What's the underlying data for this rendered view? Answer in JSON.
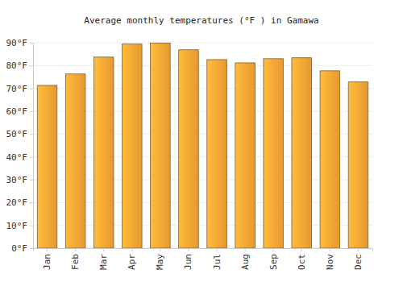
{
  "chart_data": {
    "type": "bar",
    "title": "Average monthly temperatures (°F ) in Gamawa",
    "categories": [
      "Jan",
      "Feb",
      "Mar",
      "Apr",
      "May",
      "Jun",
      "Jul",
      "Aug",
      "Sep",
      "Oct",
      "Nov",
      "Dec"
    ],
    "values": [
      71.3,
      76.3,
      83.7,
      89.4,
      89.8,
      86.9,
      82.6,
      81.2,
      83.0,
      83.4,
      77.7,
      72.8
    ],
    "color": "#fba634",
    "ylim": [
      0,
      90
    ],
    "yticks": [
      {
        "value": 0,
        "label": "0°F"
      },
      {
        "value": 10,
        "label": "10°F"
      },
      {
        "value": 20,
        "label": "20°F"
      },
      {
        "value": 30,
        "label": "30°F"
      },
      {
        "value": 40,
        "label": "40°F"
      },
      {
        "value": 50,
        "label": "50°F"
      },
      {
        "value": 60,
        "label": "60°F"
      },
      {
        "value": 70,
        "label": "70°F"
      },
      {
        "value": 80,
        "label": "80°F"
      },
      {
        "value": 90,
        "label": "90°F"
      }
    ],
    "grid": true
  }
}
